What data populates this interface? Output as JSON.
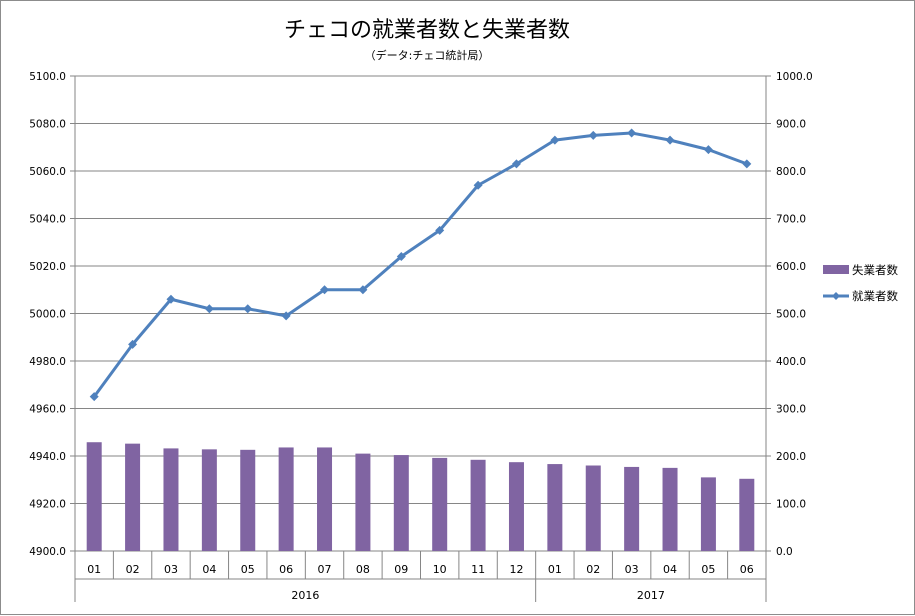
{
  "chart_data": {
    "type": "bar+line",
    "title": "チェコの就業者数と失業者数",
    "subtitle": "（データ:チェコ統計局）",
    "categories": [
      "01",
      "02",
      "03",
      "04",
      "05",
      "06",
      "07",
      "08",
      "09",
      "10",
      "11",
      "12",
      "01",
      "02",
      "03",
      "04",
      "05",
      "06"
    ],
    "year_groups": [
      {
        "label": "2016",
        "count": 12
      },
      {
        "label": "2017",
        "count": 6
      }
    ],
    "left_axis": {
      "ylim": [
        4900,
        5100
      ],
      "ticks": [
        "4900.0",
        "4920.0",
        "4940.0",
        "4960.0",
        "4980.0",
        "5000.0",
        "5020.0",
        "5040.0",
        "5060.0",
        "5080.0",
        "5100.0"
      ]
    },
    "right_axis": {
      "ylim": [
        0,
        1000
      ],
      "ticks": [
        "0.0",
        "100.0",
        "200.0",
        "300.0",
        "400.0",
        "500.0",
        "600.0",
        "700.0",
        "800.0",
        "900.0",
        "1000.0"
      ]
    },
    "grid": true,
    "legend_position": "right",
    "series": [
      {
        "name": "失業者数",
        "type": "bar",
        "axis": "right",
        "color": "#8064a2",
        "values": [
          229,
          226,
          216,
          214,
          213,
          218,
          218,
          205,
          202,
          196,
          192,
          187,
          183,
          180,
          177,
          175,
          155,
          152
        ]
      },
      {
        "name": "就業者数",
        "type": "line",
        "axis": "left",
        "color": "#4f81bd",
        "values": [
          4965,
          4987,
          5006,
          5002,
          5002,
          4999,
          5010,
          5010,
          5024,
          5035,
          5054,
          5063,
          5073,
          5075,
          5076,
          5073,
          5069,
          5063
        ]
      }
    ]
  }
}
